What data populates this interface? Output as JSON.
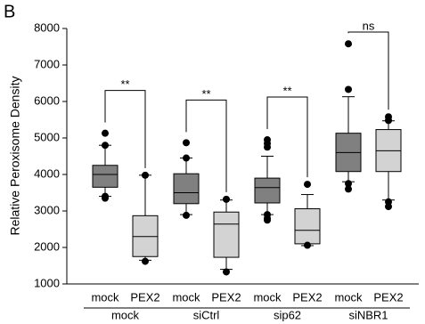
{
  "chart_data": {
    "type": "box",
    "panel_label": "B",
    "ylabel": "Relative Peroxisome Density",
    "ylim": [
      1000,
      8000
    ],
    "yticks": [
      1000,
      2000,
      3000,
      4000,
      5000,
      6000,
      7000,
      8000
    ],
    "groups": [
      "mock",
      "siCtrl",
      "sip62",
      "siNBR1"
    ],
    "boxes": [
      {
        "category": "mock",
        "color": "#808080",
        "whislo": 3400,
        "q1": 3650,
        "med": 4000,
        "q3": 4250,
        "whishi": 4800,
        "fliers": [
          5130,
          4800,
          3400,
          3350
        ]
      },
      {
        "category": "PEX2",
        "color": "#d3d3d3",
        "whislo": 1650,
        "q1": 1750,
        "med": 2300,
        "q3": 2870,
        "whishi": 3980,
        "fliers": [
          3980,
          1620
        ]
      },
      {
        "category": "mock",
        "color": "#808080",
        "whislo": 2900,
        "q1": 3200,
        "med": 3500,
        "q3": 4020,
        "whishi": 4450,
        "fliers": [
          4870,
          4450,
          2880
        ]
      },
      {
        "category": "PEX2",
        "color": "#d3d3d3",
        "whislo": 1400,
        "q1": 1730,
        "med": 2640,
        "q3": 2970,
        "whishi": 3300,
        "fliers": [
          3320,
          1330
        ]
      },
      {
        "category": "mock",
        "color": "#808080",
        "whislo": 2900,
        "q1": 3220,
        "med": 3640,
        "q3": 3900,
        "whishi": 4500,
        "fliers": [
          4950,
          4850,
          4750,
          2900,
          2800,
          2750
        ]
      },
      {
        "category": "PEX2",
        "color": "#d3d3d3",
        "whislo": 2050,
        "q1": 2100,
        "med": 2470,
        "q3": 3060,
        "whishi": 3450,
        "fliers": [
          3730,
          2060
        ]
      },
      {
        "category": "mock",
        "color": "#808080",
        "whislo": 3800,
        "q1": 4080,
        "med": 4600,
        "q3": 5130,
        "whishi": 6130,
        "fliers": [
          7580,
          6330,
          3750,
          3600
        ]
      },
      {
        "category": "PEX2",
        "color": "#d3d3d3",
        "whislo": 3300,
        "q1": 4080,
        "med": 4650,
        "q3": 5230,
        "whishi": 5470,
        "fliers": [
          5580,
          5480,
          3250,
          3120
        ]
      }
    ],
    "annotations": [
      {
        "text": "**",
        "between": [
          0,
          1
        ]
      },
      {
        "text": "**",
        "between": [
          2,
          3
        ]
      },
      {
        "text": "**",
        "between": [
          4,
          5
        ]
      },
      {
        "text": "ns",
        "between": [
          6,
          7
        ]
      }
    ]
  }
}
